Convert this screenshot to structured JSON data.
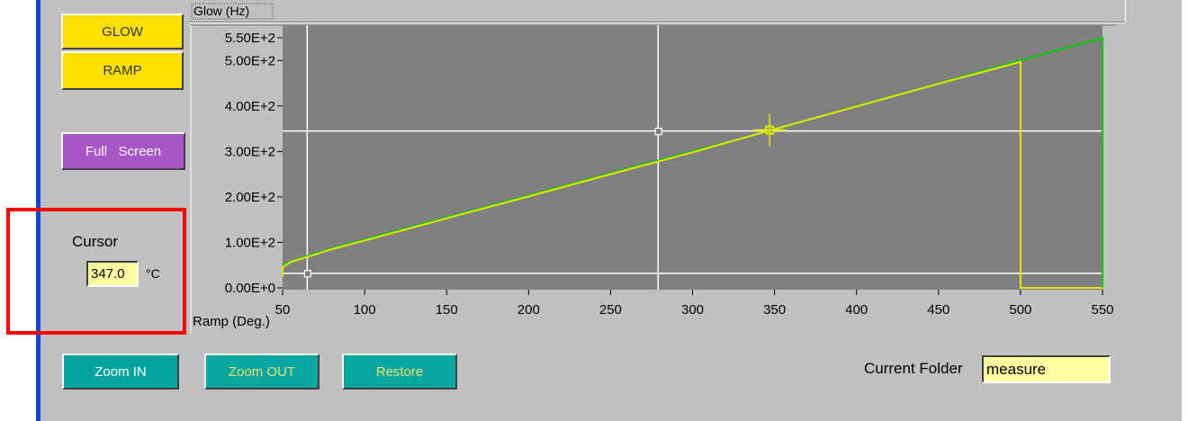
{
  "buttons": {
    "glow": "GLOW",
    "ramp": "RAMP",
    "full_screen": "Full   Screen",
    "zoom_in": "Zoom IN",
    "zoom_out": "Zoom OUT",
    "restore": "Restore"
  },
  "cursor": {
    "label": "Cursor",
    "value": "347.0",
    "unit": "°C"
  },
  "folder": {
    "label": "Current Folder",
    "value": "measure"
  },
  "chart_data": {
    "type": "line",
    "ylabel": "Glow (Hz)",
    "xlabel": "Ramp (Deg.)",
    "xlim": [
      50,
      550
    ],
    "ylim": [
      0,
      550
    ],
    "x_ticks": [
      50,
      100,
      150,
      200,
      250,
      300,
      350,
      400,
      450,
      500,
      550
    ],
    "y_ticks": [
      {
        "value": 550,
        "label": "5.50E+2"
      },
      {
        "value": 500,
        "label": "5.00E+2"
      },
      {
        "value": 400,
        "label": "4.00E+2"
      },
      {
        "value": 300,
        "label": "3.00E+2"
      },
      {
        "value": 200,
        "label": "2.00E+2"
      },
      {
        "value": 100,
        "label": "1.00E+2"
      },
      {
        "value": 0,
        "label": "0.00E+0"
      }
    ],
    "series": [
      {
        "color": "#00cc00",
        "x": [
          50,
          55,
          65,
          80,
          100,
          150,
          200,
          250,
          300,
          350,
          400,
          450,
          500,
          550,
          550
        ],
        "y": [
          50,
          58,
          70,
          87,
          106,
          155,
          203,
          252,
          300,
          348,
          400,
          450,
          500,
          550,
          0
        ]
      },
      {
        "color": "#e6e600",
        "x": [
          50,
          50,
          55,
          65,
          80,
          100,
          150,
          200,
          250,
          300,
          350,
          400,
          450,
          500,
          500,
          500,
          550
        ],
        "y": [
          25,
          45,
          57,
          68,
          85,
          104,
          153,
          201,
          250,
          298,
          349,
          399,
          449,
          497,
          245,
          0,
          0
        ]
      }
    ],
    "cursor_vertical_x": [
      65,
      279
    ],
    "cursor_horizontal_y": [
      32,
      345
    ],
    "marker": {
      "x": 347,
      "y": 347
    },
    "background": "#808080",
    "grid": false
  }
}
